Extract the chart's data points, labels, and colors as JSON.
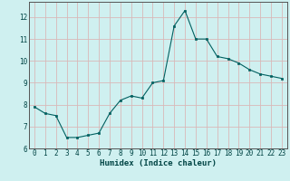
{
  "x": [
    0,
    1,
    2,
    3,
    4,
    5,
    6,
    7,
    8,
    9,
    10,
    11,
    12,
    13,
    14,
    15,
    16,
    17,
    18,
    19,
    20,
    21,
    22,
    23
  ],
  "y": [
    7.9,
    7.6,
    7.5,
    6.5,
    6.5,
    6.6,
    6.7,
    7.6,
    8.2,
    8.4,
    8.3,
    9.0,
    9.1,
    11.6,
    12.3,
    11.0,
    11.0,
    10.2,
    10.1,
    9.9,
    9.6,
    9.4,
    9.3,
    9.2
  ],
  "bg_color": "#cff0f0",
  "grid_major_color": "#d9b8b8",
  "grid_bg_color": "#cff0f0",
  "line_color": "#006060",
  "marker_color": "#006060",
  "xlabel": "Humidex (Indice chaleur)",
  "xlim": [
    -0.5,
    23.5
  ],
  "ylim": [
    6,
    12.7
  ],
  "yticks": [
    6,
    7,
    8,
    9,
    10,
    11,
    12
  ],
  "xticks": [
    0,
    1,
    2,
    3,
    4,
    5,
    6,
    7,
    8,
    9,
    10,
    11,
    12,
    13,
    14,
    15,
    16,
    17,
    18,
    19,
    20,
    21,
    22,
    23
  ],
  "tick_fontsize": 5.5,
  "xlabel_fontsize": 6.5
}
